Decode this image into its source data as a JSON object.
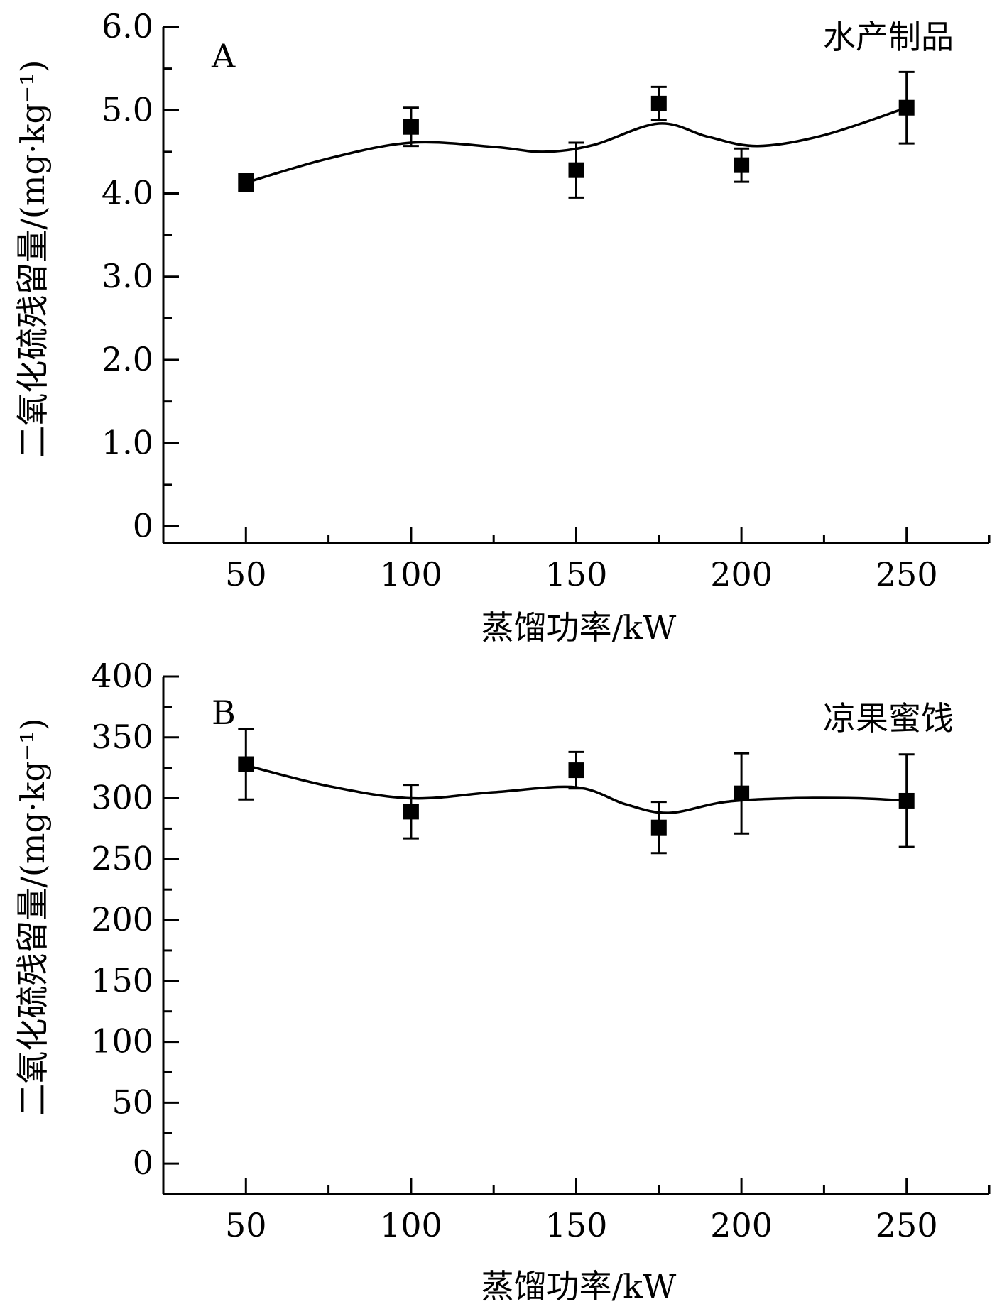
{
  "chart_data": [
    {
      "type": "line",
      "panel": "A",
      "annotation": "水产制品",
      "xlabel": "蒸馏功率/kW",
      "ylabel": "二氧化硫残留量/(mg·kg⁻¹)",
      "xlim": [
        25,
        275
      ],
      "ylim": [
        -0.2,
        6.0
      ],
      "xticks": [
        50,
        100,
        150,
        200,
        250
      ],
      "yticks": [
        0,
        1.0,
        2.0,
        3.0,
        4.0,
        5.0,
        6.0
      ],
      "ytick_labels": [
        "0",
        "1.0",
        "2.0",
        "3.0",
        "4.0",
        "5.0",
        "6.0"
      ],
      "grid": false,
      "series": [
        {
          "marker": "square",
          "color": "#000000",
          "x": [
            50,
            100,
            150,
            175,
            200,
            250
          ],
          "y": [
            4.13,
            4.8,
            4.28,
            5.08,
            4.34,
            5.03
          ],
          "error": [
            0.1,
            0.23,
            0.33,
            0.2,
            0.2,
            0.43
          ],
          "fit_curve": [
            [
              50,
              4.13
            ],
            [
              75,
              4.42
            ],
            [
              100,
              4.61
            ],
            [
              125,
              4.56
            ],
            [
              140,
              4.5
            ],
            [
              155,
              4.58
            ],
            [
              175,
              4.84
            ],
            [
              190,
              4.68
            ],
            [
              205,
              4.57
            ],
            [
              225,
              4.7
            ],
            [
              250,
              5.03
            ]
          ]
        }
      ]
    },
    {
      "type": "line",
      "panel": "B",
      "annotation": "凉果蜜饯",
      "xlabel": "蒸馏功率/kW",
      "ylabel": "二氧化硫残留量/(mg·kg⁻¹)",
      "xlim": [
        25,
        275
      ],
      "ylim": [
        -25,
        400
      ],
      "xticks": [
        50,
        100,
        150,
        200,
        250
      ],
      "yticks": [
        0,
        50,
        100,
        150,
        200,
        250,
        300,
        350,
        400
      ],
      "ytick_labels": [
        "0",
        "50",
        "100",
        "150",
        "200",
        "250",
        "300",
        "350",
        "400"
      ],
      "grid": false,
      "series": [
        {
          "marker": "square",
          "color": "#000000",
          "x": [
            50,
            100,
            150,
            175,
            200,
            250
          ],
          "y": [
            328,
            289,
            323,
            276,
            304,
            298
          ],
          "error": [
            29,
            22,
            15,
            21,
            33,
            38
          ],
          "fit_curve": [
            [
              50,
              327
            ],
            [
              75,
              310
            ],
            [
              100,
              300
            ],
            [
              125,
              305
            ],
            [
              150,
              309
            ],
            [
              165,
              295
            ],
            [
              178,
              288
            ],
            [
              195,
              297
            ],
            [
              215,
              300
            ],
            [
              235,
              300
            ],
            [
              250,
              298
            ]
          ]
        }
      ]
    }
  ]
}
